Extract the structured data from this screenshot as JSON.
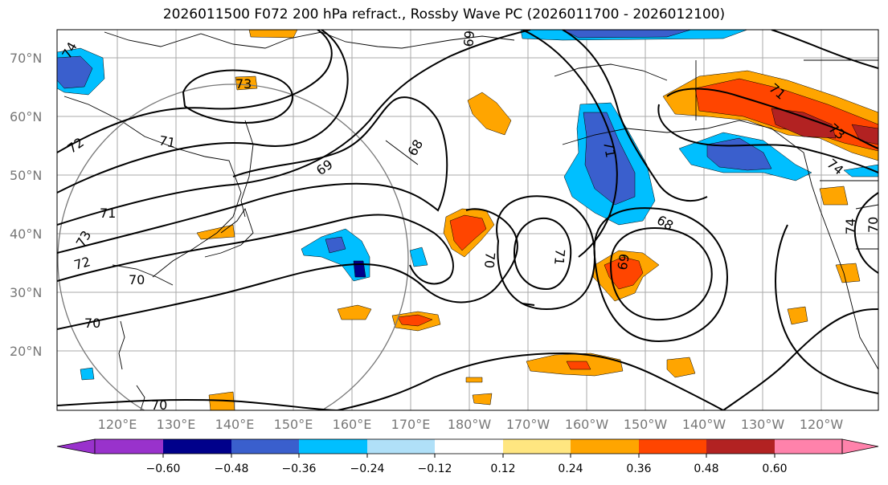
{
  "title": "2026011500 F072 200 hPa refract., Rossby Wave PC (2026011700 - 2026012100)",
  "map": {
    "lat_ticks": [
      "70°N",
      "60°N",
      "50°N",
      "40°N",
      "30°N",
      "20°N"
    ],
    "lon_ticks": [
      "120°E",
      "130°E",
      "140°E",
      "150°E",
      "160°E",
      "170°E",
      "180°W",
      "170°W",
      "160°W",
      "150°W",
      "140°W",
      "130°W",
      "120°W"
    ],
    "contour_labels": [
      "74",
      "73",
      "72",
      "71",
      "69",
      "68",
      "69",
      "71",
      "72",
      "73",
      "70",
      "70",
      "70",
      "70",
      "71",
      "68",
      "69",
      "71",
      "71",
      "73",
      "74",
      "74",
      "70"
    ],
    "colors": {
      "purple": "#9932cc",
      "navy": "#00008b",
      "royal_blue": "#3a5fcd",
      "deep_sky_blue": "#00bfff",
      "light_blue": "#b0e0f8",
      "white": "#ffffff",
      "light_yellow": "#ffe680",
      "orange": "#ffa500",
      "red_orange": "#ff4500",
      "firebrick": "#b22222",
      "pink": "#ff82ab"
    }
  },
  "colorbar": {
    "labels": [
      "−0.60",
      "−0.48",
      "−0.36",
      "−0.24",
      "−0.12",
      "0.12",
      "0.24",
      "0.36",
      "0.48",
      "0.60"
    ],
    "bounds": [
      -0.6,
      -0.48,
      -0.36,
      -0.24,
      -0.12,
      0.12,
      0.24,
      0.36,
      0.48,
      0.6
    ]
  }
}
